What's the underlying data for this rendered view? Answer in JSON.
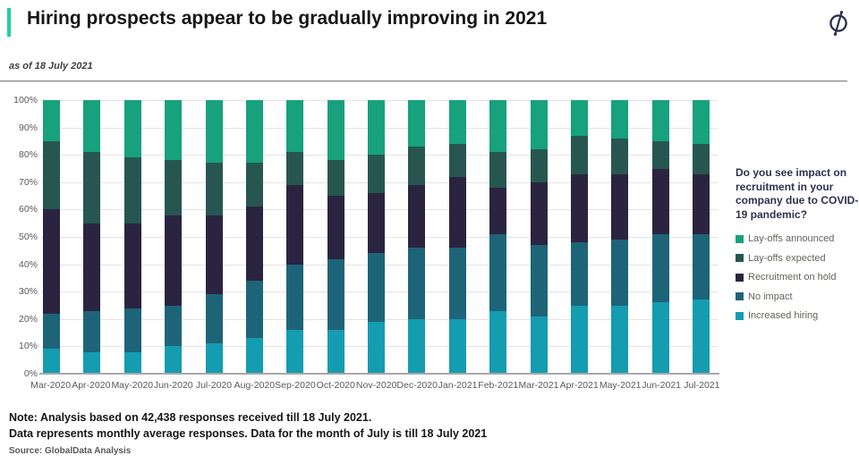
{
  "header": {
    "title": "Hiring prospects appear to be gradually improving in 2021",
    "as_of": "as of 18 July 2021"
  },
  "colors": {
    "accent": "#1ed0a4",
    "layoffs_announced": "#17a17d",
    "layoffs_expected": "#275650",
    "recruitment_on_hold": "#2a2440",
    "no_impact": "#1e6478",
    "increased_hiring": "#149cb1",
    "legend_title": "#2e3150",
    "axis_text": "#595959"
  },
  "legend": {
    "question": "Do you see impact on recruitment in your company due to COVID-19 pandemic?",
    "items": [
      {
        "label": "Lay-offs announced",
        "color": "#17a17d"
      },
      {
        "label": "Lay-offs expected",
        "color": "#275650"
      },
      {
        "label": "Recruitment on hold",
        "color": "#2a2440"
      },
      {
        "label": "No impact",
        "color": "#1e6478"
      },
      {
        "label": "Increased hiring",
        "color": "#149cb1"
      }
    ]
  },
  "chart_data": {
    "type": "bar",
    "stacked": true,
    "stacked_to_100_percent": true,
    "title": "Do you see impact on recruitment in your company due to COVID-19 pandemic?",
    "categories": [
      "Mar-2020",
      "Apr-2020",
      "May-2020",
      "Jun-2020",
      "Jul-2020",
      "Aug-2020",
      "Sep-2020",
      "Oct-2020",
      "Nov-2020",
      "Dec-2020",
      "Jan-2021",
      "Feb-2021",
      "Mar-2021",
      "Apr-2021",
      "May-2021",
      "Jun-2021",
      "Jul-2021"
    ],
    "series": [
      {
        "name": "Increased hiring",
        "color": "#149cb1",
        "values": [
          9,
          8,
          8,
          10,
          11,
          13,
          16,
          16,
          19,
          20,
          20,
          23,
          21,
          25,
          25,
          26,
          27
        ]
      },
      {
        "name": "No impact",
        "color": "#1e6478",
        "values": [
          13,
          15,
          16,
          15,
          18,
          21,
          24,
          26,
          25,
          26,
          26,
          28,
          26,
          23,
          24,
          25,
          24
        ]
      },
      {
        "name": "Recruitment on hold",
        "color": "#2a2440",
        "values": [
          38,
          32,
          31,
          33,
          29,
          27,
          29,
          23,
          22,
          23,
          26,
          17,
          23,
          25,
          24,
          24,
          22
        ]
      },
      {
        "name": "Lay-offs expected",
        "color": "#275650",
        "values": [
          25,
          26,
          24,
          20,
          19,
          16,
          12,
          13,
          14,
          14,
          12,
          13,
          12,
          14,
          13,
          10,
          11
        ]
      },
      {
        "name": "Lay-offs announced",
        "color": "#17a17d",
        "values": [
          15,
          19,
          21,
          22,
          23,
          23,
          19,
          22,
          20,
          17,
          16,
          19,
          18,
          13,
          14,
          15,
          16
        ]
      }
    ],
    "stack_order_bottom_to_top": [
      "Increased hiring",
      "No impact",
      "Recruitment on hold",
      "Lay-offs expected",
      "Lay-offs announced"
    ],
    "ylabel": "",
    "xlabel": "",
    "ylim": [
      0,
      100
    ],
    "y_ticks_top_to_bottom": [
      "100%",
      "90%",
      "80%",
      "70%",
      "60%",
      "50%",
      "40%",
      "30%",
      "20%",
      "10%",
      "0%"
    ],
    "grid": true,
    "legend_position": "right"
  },
  "notes": {
    "line1": "Note: Analysis based on 42,438 responses received till 18 July 2021.",
    "line2": "Data represents monthly average responses. Data for the month of July is till 18 July 2021"
  },
  "source": "Source: GlobalData Analysis"
}
